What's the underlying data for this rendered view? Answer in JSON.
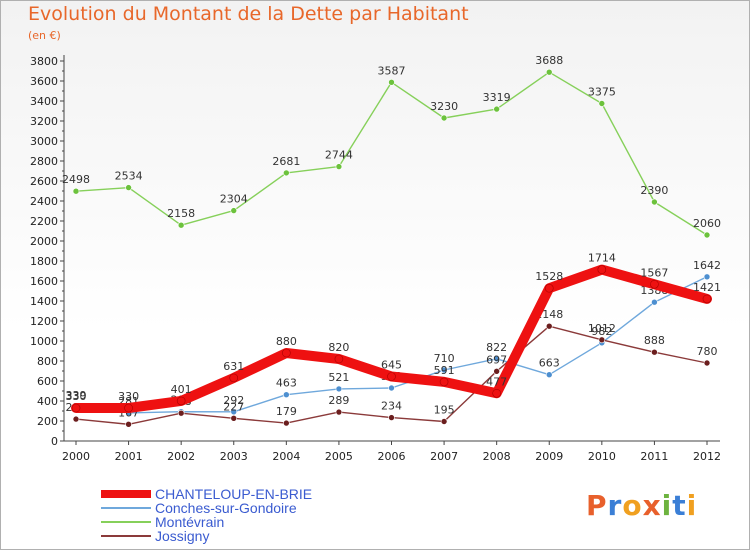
{
  "title": "Evolution du Montant de la Dette par Habitant",
  "subtitle": "(en €)",
  "logo": "Proxiti",
  "colors": {
    "title": "#e8672a",
    "axis": "#444444",
    "grid": "#dddddd",
    "logo": [
      "#e8602c",
      "#3b7fd6",
      "#f0a020",
      "#e8602c",
      "#6db33f",
      "#3b7fd6",
      "#f0a020"
    ]
  },
  "chart_data": {
    "type": "line",
    "title": "Evolution du Montant de la Dette par Habitant",
    "subtitle": "(en €)",
    "xlabel": "",
    "ylabel": "",
    "x": [
      "2000",
      "2001",
      "2002",
      "2003",
      "2004",
      "2005",
      "2006",
      "2007",
      "2008",
      "2009",
      "2010",
      "2011",
      "2012"
    ],
    "ylim": [
      0,
      3800
    ],
    "yticks": [
      "0",
      "200",
      "400",
      "600",
      "800",
      "1000",
      "1200",
      "1400",
      "1600",
      "1800",
      "2000",
      "2200",
      "2400",
      "2600",
      "2800",
      "3000",
      "3200",
      "3400",
      "3600",
      "3800"
    ],
    "grid": false,
    "legend_position": "bottom-left",
    "series": [
      {
        "name": "Montévrain",
        "color": "#86d05a",
        "marker": "#6cc23c",
        "values": [
          2498,
          2534,
          2158,
          2304,
          2681,
          2744,
          3587,
          3230,
          3319,
          3688,
          3375,
          2390,
          2060
        ],
        "labels": [
          "2498",
          "2534",
          "2158",
          "2304",
          "2681",
          "2744",
          "3587",
          "3230",
          "3319",
          "3688",
          "3375",
          "2390",
          "2060"
        ]
      },
      {
        "name": "Conches-sur-Gondoire",
        "color": "#6fa8dc",
        "marker": "#4d8fd0",
        "values": [
          339,
          281,
          293,
          292,
          463,
          521,
          530,
          710,
          822,
          663,
          982,
          1388,
          1642
        ],
        "labels": [
          "339",
          "281",
          "293",
          "292",
          "463",
          "521",
          "530",
          "710",
          "822",
          "663",
          "982",
          "1388",
          "1642"
        ]
      },
      {
        "name": "Jossigny",
        "color": "#8b3a3a",
        "marker": "#6b1e1e",
        "values": [
          219,
          167,
          278,
          227,
          179,
          289,
          234,
          195,
          697,
          1148,
          1012,
          888,
          780
        ],
        "labels": [
          "219",
          "167",
          "278",
          "227",
          "179",
          "289",
          "234",
          "195",
          "697",
          "1148",
          "1012",
          "888",
          "780"
        ]
      },
      {
        "name": "CHANTELOUP-EN-BRIE",
        "color": "#ee1111",
        "marker": "#ee1111",
        "bold": true,
        "values": [
          330,
          330,
          401,
          631,
          880,
          820,
          645,
          591,
          477,
          1528,
          1714,
          1567,
          1421
        ],
        "labels": [
          "330",
          "330",
          "401",
          "631",
          "880",
          "820",
          "645",
          "591",
          "477",
          "1528",
          "1714",
          "1567",
          "1421"
        ]
      }
    ],
    "legend": [
      "CHANTELOUP-EN-BRIE",
      "Conches-sur-Gondoire",
      "Montévrain",
      "Jossigny"
    ]
  }
}
